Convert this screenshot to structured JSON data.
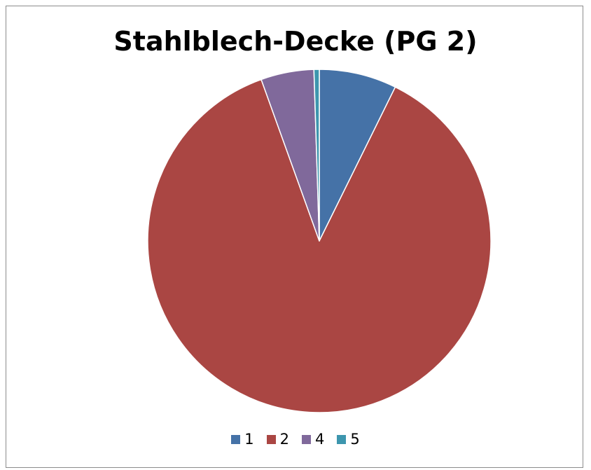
{
  "chart_data": {
    "type": "pie",
    "title": "Stahlblech-Decke (PG 2)",
    "categories": [
      "1",
      "2",
      "4",
      "5"
    ],
    "values": [
      7.3,
      87.2,
      5.0,
      0.5
    ],
    "colors": [
      "#4572A7",
      "#AA4643",
      "#80699B",
      "#3D96AE"
    ],
    "start_angle_deg": 0,
    "direction": "clockwise",
    "legend_position": "bottom"
  }
}
